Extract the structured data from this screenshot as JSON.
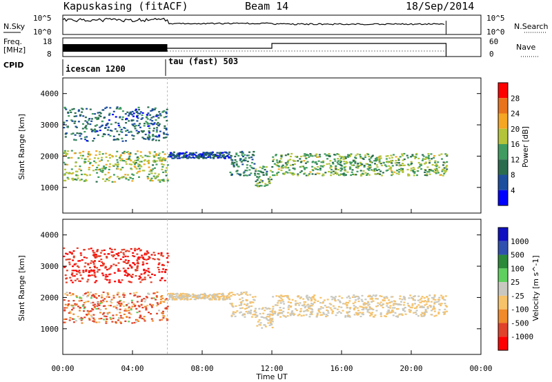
{
  "header": {
    "station": "Kapuskasing (fitACF)",
    "beam": "Beam 14",
    "date": "18/Sep/2014"
  },
  "noise_panel": {
    "label": "N.Sky",
    "right_label": "N.Search",
    "left_ticks": [
      "10^5",
      "10^0"
    ],
    "right_ticks": [
      "10^5",
      "10^0"
    ]
  },
  "freq_panel": {
    "label_top": "Freq.",
    "label_bottom": "[MHz]",
    "right_label": "Nave",
    "left_ticks": [
      "18",
      "8"
    ],
    "right_ticks": [
      "60",
      "0"
    ]
  },
  "cpid": {
    "label": "CPID",
    "segments": [
      {
        "name": "icescan 1200",
        "start_hour": 0
      },
      {
        "name": "tau (fast) 503",
        "start_hour": 6
      }
    ]
  },
  "power_panel": {
    "ylabel": "Slant Range [km]",
    "colorbar_label": "Power [dB]",
    "colorbar_ticks": [
      "28",
      "24",
      "20",
      "16",
      "12",
      "8",
      "4"
    ],
    "colors": [
      "#0000ff",
      "#1d4e9e",
      "#2a6b4e",
      "#3f9b5f",
      "#b3c43a",
      "#f5a623",
      "#e8731b",
      "#ff0000"
    ]
  },
  "velocity_panel": {
    "ylabel": "Slant Range [km]",
    "colorbar_label": "Velocity [m s^-1]",
    "colorbar_ticks": [
      "1000",
      "500",
      "100",
      "25",
      "-25",
      "-100",
      "-500",
      "-1000"
    ],
    "colors": [
      "#ff0000",
      "#e0422a",
      "#f08a2a",
      "#f6c26a",
      "#c8c8c0",
      "#5fcf5f",
      "#2a8a3a",
      "#3050b0",
      "#1010c0"
    ]
  },
  "x_axis": {
    "label": "Time UT",
    "ticks": [
      "00:00",
      "04:00",
      "08:00",
      "12:00",
      "16:00",
      "20:00",
      "00:00"
    ]
  },
  "chart_data": {
    "type": "heatmap",
    "title": "Kapuskasing (fitACF)   Beam 14   18/Sep/2014",
    "xlabel": "Time UT",
    "ylabel": "Slant Range [km]",
    "xlim_hours": [
      0,
      24
    ],
    "ylim_km": [
      180,
      4500
    ],
    "y_ticks": [
      1000,
      2000,
      3000,
      4000
    ],
    "data_end_hour": 22,
    "cpid_change_hour": 6,
    "series": [
      {
        "name": "Power [dB]",
        "scale": [
          0,
          30
        ]
      },
      {
        "name": "Velocity [m s^-1]",
        "scale": [
          -1000,
          1000
        ]
      }
    ],
    "echo_regions": [
      {
        "t0": 0.0,
        "t1": 6.0,
        "r0": 1200,
        "r1": 2200,
        "power": 16,
        "velocity": -100
      },
      {
        "t0": 0.0,
        "t1": 6.0,
        "r0": 2500,
        "r1": 3600,
        "power": 8,
        "velocity": -500
      },
      {
        "t0": 6.0,
        "t1": 9.5,
        "r0": 1950,
        "r1": 2150,
        "power": 6,
        "velocity": 0
      },
      {
        "t0": 9.5,
        "t1": 11.0,
        "r0": 1400,
        "r1": 2200,
        "power": 10,
        "velocity": 0
      },
      {
        "t0": 11.0,
        "t1": 12.0,
        "r0": 1050,
        "r1": 1700,
        "power": 12,
        "velocity": 0
      },
      {
        "t0": 12.0,
        "t1": 22.0,
        "r0": 1400,
        "r1": 2100,
        "power": 14,
        "velocity": 0
      }
    ]
  }
}
